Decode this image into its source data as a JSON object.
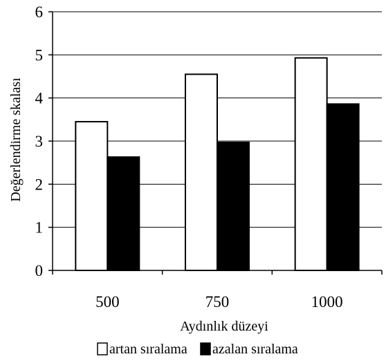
{
  "chart_data": {
    "type": "bar",
    "title": "",
    "xlabel": "Aydınlık düzeyi",
    "ylabel": "Değerlendirme skalası",
    "categories": [
      "500",
      "750",
      "1000"
    ],
    "ylim": [
      0,
      6
    ],
    "yticks": [
      "0",
      "1",
      "2",
      "3",
      "4",
      "5",
      "6"
    ],
    "grid": "horizontal",
    "legend_position": "bottom",
    "series": [
      {
        "name": "artan sıralama",
        "values": [
          3.45,
          4.55,
          4.93
        ],
        "color": "#ffffff"
      },
      {
        "name": "azalan sıralama",
        "values": [
          2.63,
          2.97,
          3.86
        ],
        "color": "#000000"
      }
    ]
  }
}
